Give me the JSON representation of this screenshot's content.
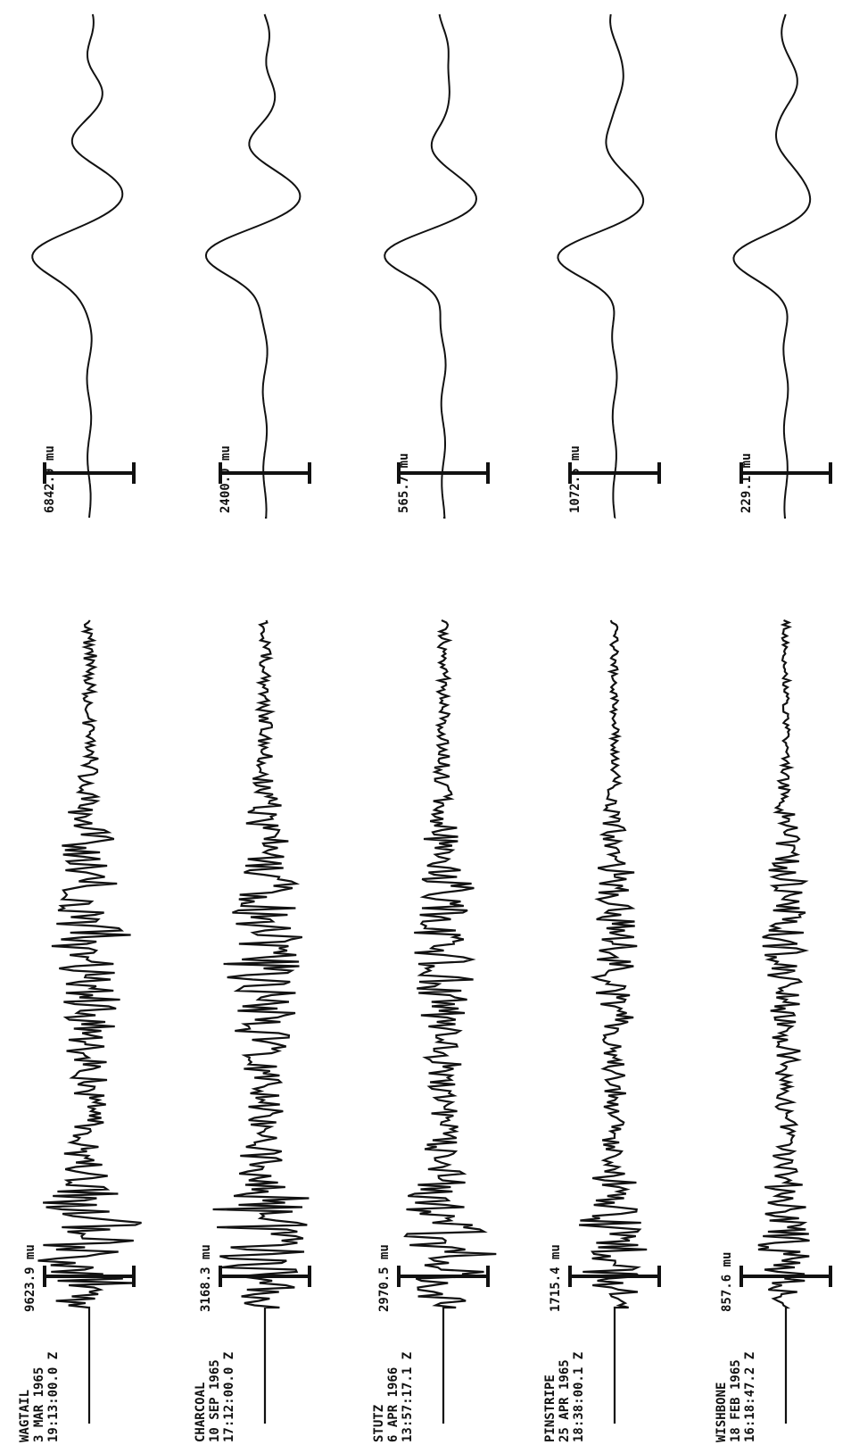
{
  "chart_data": {
    "type": "line",
    "title": "",
    "orientation": "rotated-90",
    "grid": false,
    "legend": "none",
    "events": [
      {
        "name": "WAGTAIL",
        "date": "3 MAR 1965",
        "time": "19:13:00.0 Z",
        "lp_amp": "9623.9 mu",
        "sp_amp": "6842.9 mu",
        "sp_label": "6842.9 mu"
      },
      {
        "name": "CHARCOAL",
        "date": "10 SEP 1965",
        "time": "17:12:00.0 Z",
        "lp_amp": "3168.3 mu",
        "sp_amp": "2400.0 mu",
        "sp_label": "2400.0 mu"
      },
      {
        "name": "STUTZ",
        "date": "6 APR 1966",
        "time": "13:57:17.1 Z",
        "lp_amp": "2970.5 mu",
        "sp_amp": "565.7 mu",
        "sp_label": "565.7 mu"
      },
      {
        "name": "PINSTRIPE",
        "date": "25 APR 1965",
        "time": "18:38:00.1 Z",
        "lp_amp": "1715.4 mu",
        "sp_amp": "1072.5 mu",
        "sp_label": "1072.5 mu"
      },
      {
        "name": "WISHBONE",
        "date": "18 FEB 1965",
        "time": "16:18:47.2 Z",
        "lp_amp": "857.6 mu",
        "sp_amp": "229.1 mu",
        "sp_label": "229.1 mu"
      }
    ]
  },
  "colors": {
    "trace": "#111111",
    "background": "#ffffff"
  }
}
